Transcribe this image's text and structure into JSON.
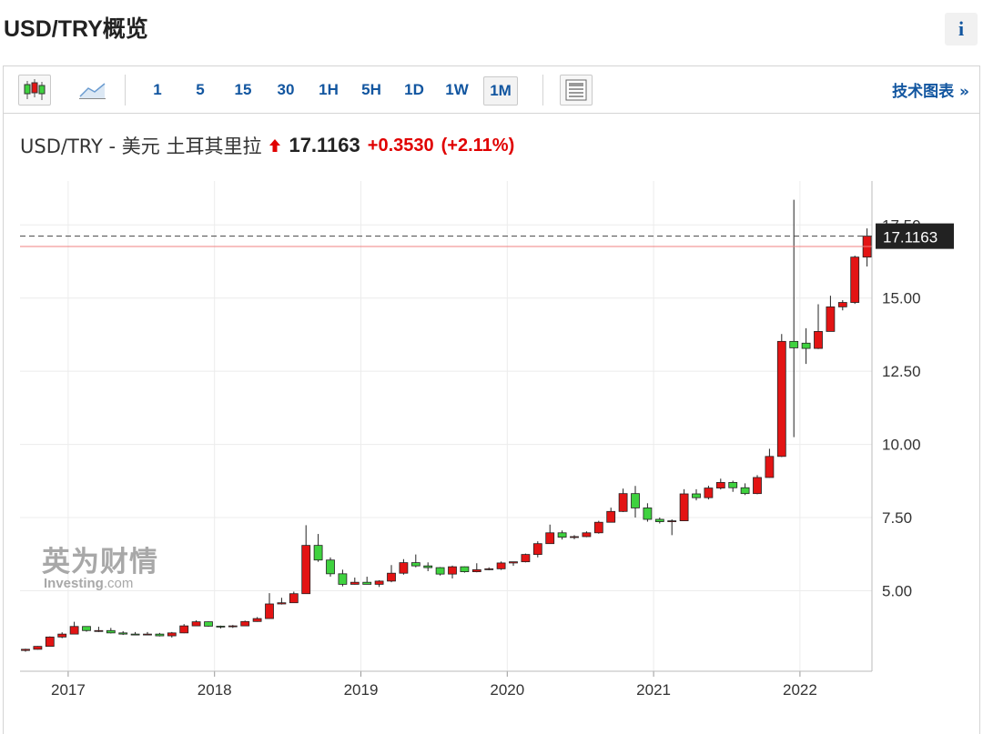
{
  "header": {
    "title": "USD/TRY概览",
    "info": "i"
  },
  "toolbar": {
    "intervals": [
      "1",
      "5",
      "15",
      "30",
      "1H",
      "5H",
      "1D",
      "1W",
      "1M"
    ],
    "selected": 8,
    "link": "技术图表 »"
  },
  "quote": {
    "name": "USD/TRY - 美元 土耳其里拉",
    "price": "17.1163",
    "change": "+0.3530",
    "change_percent": "(+2.11%)"
  },
  "watermark": {
    "cn": "英为财情",
    "brand": "Investing",
    "domain": ".com"
  },
  "chart_data": {
    "type": "candlestick",
    "categories": [
      null,
      null,
      null,
      null,
      "2017",
      null,
      null,
      null,
      null,
      null,
      null,
      null,
      null,
      null,
      null,
      null,
      "2018",
      null,
      null,
      null,
      null,
      null,
      null,
      null,
      null,
      null,
      null,
      null,
      "2019",
      null,
      null,
      null,
      null,
      null,
      null,
      null,
      null,
      null,
      null,
      null,
      "2020",
      null,
      null,
      null,
      null,
      null,
      null,
      null,
      null,
      null,
      null,
      null,
      "2021",
      null,
      null,
      null,
      null,
      null,
      null,
      null,
      null,
      null,
      null,
      null,
      "2022",
      null,
      null,
      null,
      null,
      null
    ],
    "open": [
      2.96,
      3.0,
      3.1,
      3.42,
      3.52,
      3.78,
      3.64,
      3.64,
      3.56,
      3.52,
      3.51,
      3.52,
      3.46,
      3.56,
      3.8,
      3.94,
      3.79,
      3.77,
      3.8,
      3.95,
      4.05,
      4.55,
      4.59,
      4.9,
      6.55,
      6.05,
      5.58,
      5.22,
      5.29,
      5.22,
      5.33,
      5.6,
      5.96,
      5.85,
      5.79,
      5.57,
      5.82,
      5.65,
      5.72,
      5.75,
      5.95,
      5.99,
      6.24,
      6.61,
      6.98,
      6.83,
      6.85,
      6.98,
      7.34,
      7.71,
      8.32,
      7.83,
      7.44,
      7.36,
      7.39,
      8.31,
      8.18,
      8.51,
      8.7,
      8.52,
      8.32,
      8.87,
      9.59,
      13.52,
      13.46,
      13.28,
      13.86,
      14.7,
      14.85,
      16.4
    ],
    "high": [
      3.02,
      3.11,
      3.44,
      3.58,
      3.94,
      3.79,
      3.77,
      3.73,
      3.62,
      3.59,
      3.59,
      3.56,
      3.59,
      3.86,
      3.99,
      3.95,
      3.81,
      3.83,
      3.98,
      4.1,
      4.92,
      4.76,
      4.97,
      7.24,
      6.94,
      6.14,
      5.72,
      5.45,
      5.48,
      5.36,
      5.88,
      6.08,
      6.24,
      5.97,
      5.81,
      5.86,
      5.83,
      5.94,
      5.8,
      6.0,
      5.99,
      6.27,
      6.69,
      7.26,
      7.06,
      6.9,
      7.03,
      7.39,
      7.84,
      8.49,
      8.58,
      7.99,
      7.5,
      7.44,
      8.47,
      8.47,
      8.59,
      8.83,
      8.76,
      8.67,
      8.95,
      9.85,
      13.77,
      18.36,
      13.97,
      14.79,
      15.08,
      14.93,
      16.45,
      17.38
    ],
    "low": [
      2.92,
      2.99,
      3.09,
      3.38,
      3.52,
      3.6,
      3.59,
      3.54,
      3.49,
      3.49,
      3.51,
      3.44,
      3.4,
      3.55,
      3.8,
      3.77,
      3.71,
      3.73,
      3.8,
      3.94,
      4.04,
      4.53,
      4.59,
      4.9,
      5.99,
      5.48,
      5.15,
      5.21,
      5.22,
      5.13,
      5.29,
      5.55,
      5.8,
      5.67,
      5.52,
      5.42,
      5.62,
      5.63,
      5.7,
      5.71,
      5.85,
      5.97,
      6.14,
      6.6,
      6.75,
      6.76,
      6.83,
      6.95,
      7.33,
      7.69,
      7.5,
      7.36,
      7.3,
      6.9,
      7.38,
      8.09,
      8.12,
      8.46,
      8.38,
      8.27,
      8.3,
      8.86,
      9.57,
      10.25,
      12.75,
      13.26,
      13.86,
      14.58,
      14.8,
      16.08
    ],
    "close": [
      3.0,
      3.1,
      3.42,
      3.52,
      3.78,
      3.64,
      3.64,
      3.56,
      3.52,
      3.51,
      3.52,
      3.46,
      3.56,
      3.8,
      3.94,
      3.79,
      3.77,
      3.8,
      3.95,
      4.05,
      4.55,
      4.59,
      4.9,
      6.55,
      6.05,
      5.58,
      5.22,
      5.29,
      5.22,
      5.33,
      5.6,
      5.96,
      5.85,
      5.79,
      5.57,
      5.82,
      5.65,
      5.72,
      5.75,
      5.95,
      5.99,
      6.24,
      6.61,
      6.98,
      6.83,
      6.85,
      6.98,
      7.34,
      7.71,
      8.32,
      7.83,
      7.44,
      7.36,
      7.39,
      8.31,
      8.18,
      8.51,
      8.7,
      8.52,
      8.32,
      8.87,
      9.59,
      13.52,
      13.3,
      13.28,
      13.86,
      14.7,
      14.85,
      16.4,
      17.1163
    ],
    "up_color": "#e31414",
    "down_color": "#3fd23f",
    "previous_close_line": 16.7633,
    "ylim": [
      2.25,
      19
    ],
    "yticks": [
      {
        "value": 5,
        "label": "5.00"
      },
      {
        "value": 7.5,
        "label": "7.50"
      },
      {
        "value": 10,
        "label": "10.00"
      },
      {
        "value": 12.5,
        "label": "12.50"
      },
      {
        "value": 15,
        "label": "15.00"
      },
      {
        "value": 17.5,
        "label": "17.50"
      }
    ],
    "grid": true
  }
}
